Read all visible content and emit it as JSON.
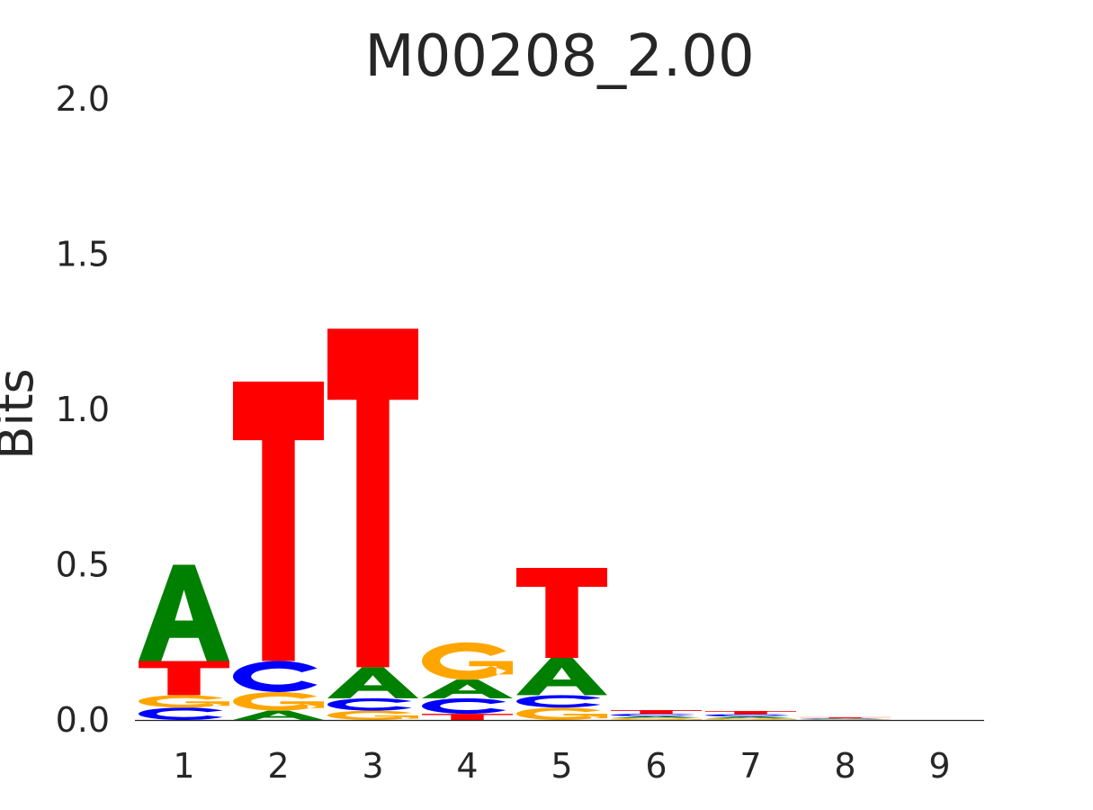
{
  "chart_data": {
    "type": "sequence-logo",
    "title": "M00208_2.00",
    "ylabel": "Bits",
    "xlabel": "",
    "ylim": [
      0,
      2
    ],
    "yticks": [
      "0.0",
      "0.5",
      "1.0",
      "1.5",
      "2.0"
    ],
    "ytick_values": [
      0,
      0.5,
      1.0,
      1.5,
      2.0
    ],
    "positions": [
      "1",
      "2",
      "3",
      "4",
      "5",
      "6",
      "7",
      "8",
      "9"
    ],
    "colors": {
      "A": "#008000",
      "C": "#0000ff",
      "G": "#ffa500",
      "T": "#ff0000"
    },
    "stacks": [
      [
        {
          "base": "C",
          "bits": 0.04
        },
        {
          "base": "G",
          "bits": 0.04
        },
        {
          "base": "T",
          "bits": 0.11
        },
        {
          "base": "A",
          "bits": 0.31
        }
      ],
      [
        {
          "base": "A",
          "bits": 0.03
        },
        {
          "base": "G",
          "bits": 0.06
        },
        {
          "base": "C",
          "bits": 0.1
        },
        {
          "base": "T",
          "bits": 0.9
        }
      ],
      [
        {
          "base": "G",
          "bits": 0.03
        },
        {
          "base": "C",
          "bits": 0.04
        },
        {
          "base": "A",
          "bits": 0.1
        },
        {
          "base": "T",
          "bits": 1.09
        }
      ],
      [
        {
          "base": "T",
          "bits": 0.02
        },
        {
          "base": "C",
          "bits": 0.05
        },
        {
          "base": "A",
          "bits": 0.06
        },
        {
          "base": "G",
          "bits": 0.12
        }
      ],
      [
        {
          "base": "G",
          "bits": 0.04
        },
        {
          "base": "C",
          "bits": 0.04
        },
        {
          "base": "A",
          "bits": 0.12
        },
        {
          "base": "T",
          "bits": 0.29
        }
      ],
      [
        {
          "base": "G",
          "bits": 0.006
        },
        {
          "base": "A",
          "bits": 0.006
        },
        {
          "base": "C",
          "bits": 0.008
        },
        {
          "base": "T",
          "bits": 0.012
        }
      ],
      [
        {
          "base": "G",
          "bits": 0.005
        },
        {
          "base": "A",
          "bits": 0.006
        },
        {
          "base": "C",
          "bits": 0.008
        },
        {
          "base": "T",
          "bits": 0.01
        }
      ],
      [
        {
          "base": "G",
          "bits": 0.002
        },
        {
          "base": "A",
          "bits": 0.002
        },
        {
          "base": "C",
          "bits": 0.002
        },
        {
          "base": "T",
          "bits": 0.003
        }
      ],
      []
    ]
  }
}
